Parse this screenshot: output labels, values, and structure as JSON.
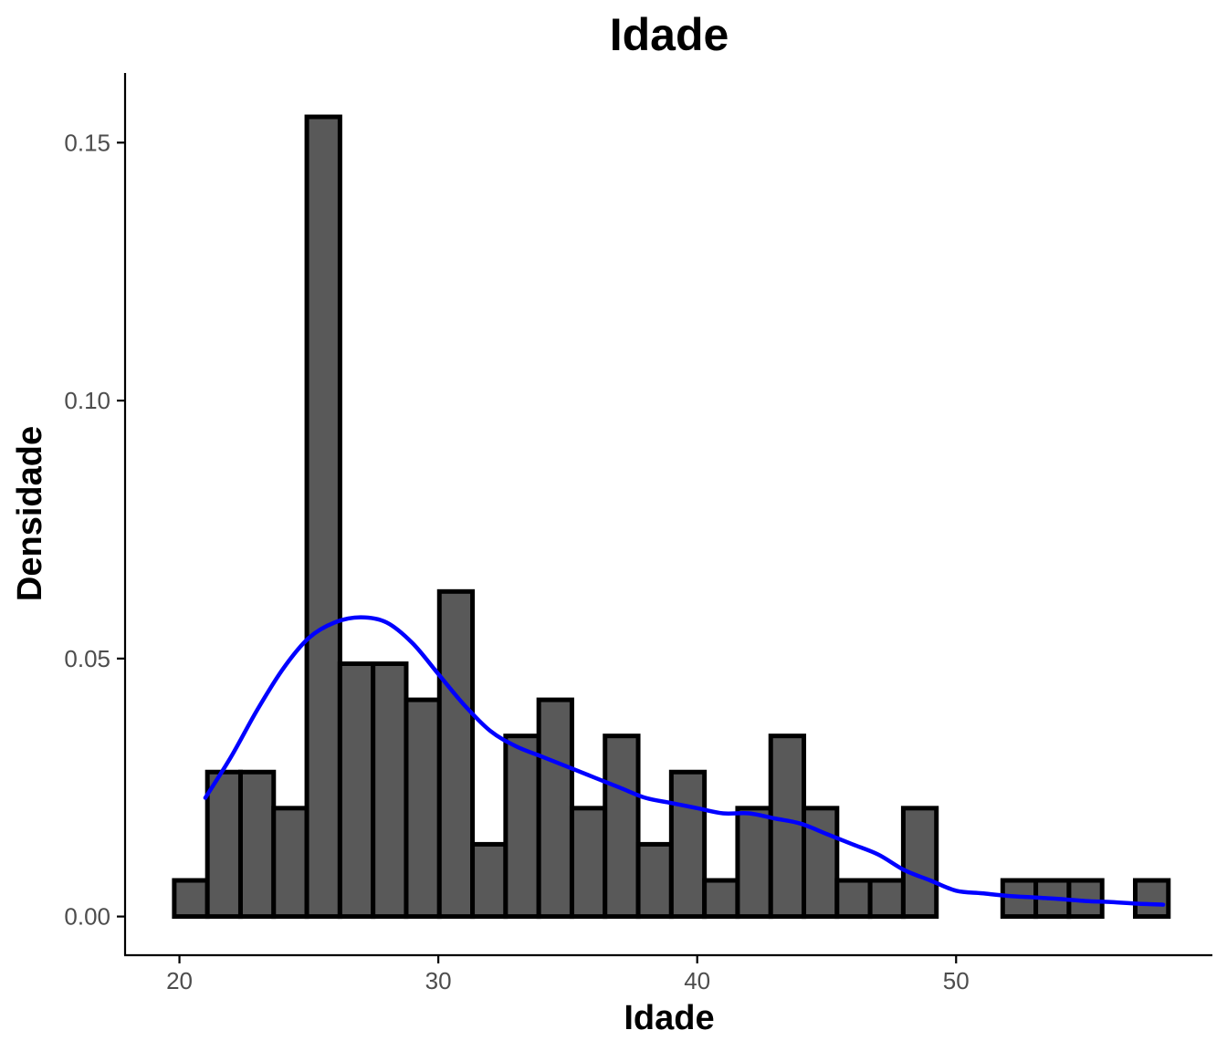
{
  "chart_data": {
    "type": "bar",
    "title": "Idade",
    "xlabel": "Idade",
    "ylabel": "Densidade",
    "xlim": [
      17.9,
      59.9
    ],
    "ylim": [
      -0.0075,
      0.1635
    ],
    "x_ticks": [
      20,
      30,
      40,
      50
    ],
    "x_tick_labels": [
      "20",
      "30",
      "40",
      "50"
    ],
    "y_ticks": [
      0.0,
      0.05,
      0.1,
      0.15
    ],
    "y_tick_labels": [
      "0.00",
      "0.05",
      "0.10",
      "0.15"
    ],
    "grid": false,
    "histogram": {
      "bin_width": 1.28,
      "bin_start": 19.8,
      "values": [
        0.007,
        0.028,
        0.028,
        0.021,
        0.155,
        0.049,
        0.049,
        0.042,
        0.063,
        0.014,
        0.035,
        0.042,
        0.021,
        0.035,
        0.014,
        0.028,
        0.007,
        0.021,
        0.035,
        0.021,
        0.007,
        0.007,
        0.021,
        0.0,
        0.0,
        0.007,
        0.007,
        0.007,
        0.0,
        0.007
      ]
    },
    "density_curve": {
      "color": "#0000ff",
      "x": [
        21,
        22,
        23,
        24,
        25,
        26,
        27,
        28,
        29,
        30,
        31,
        32,
        33,
        34,
        35,
        36,
        37,
        38,
        39,
        40,
        41,
        42,
        43,
        44,
        45,
        46,
        47,
        48,
        49,
        50,
        51,
        52,
        53,
        54,
        55,
        56,
        57,
        58
      ],
      "y": [
        0.023,
        0.031,
        0.04,
        0.048,
        0.054,
        0.057,
        0.058,
        0.057,
        0.053,
        0.047,
        0.041,
        0.036,
        0.033,
        0.031,
        0.029,
        0.027,
        0.025,
        0.023,
        0.022,
        0.021,
        0.02,
        0.02,
        0.019,
        0.018,
        0.016,
        0.014,
        0.012,
        0.009,
        0.007,
        0.005,
        0.0045,
        0.004,
        0.0037,
        0.0034,
        0.003,
        0.0028,
        0.0025,
        0.0023
      ]
    },
    "colors": {
      "bar_fill": "#595959",
      "bar_stroke": "#000000",
      "tick_label": "#4d4d4d"
    }
  }
}
